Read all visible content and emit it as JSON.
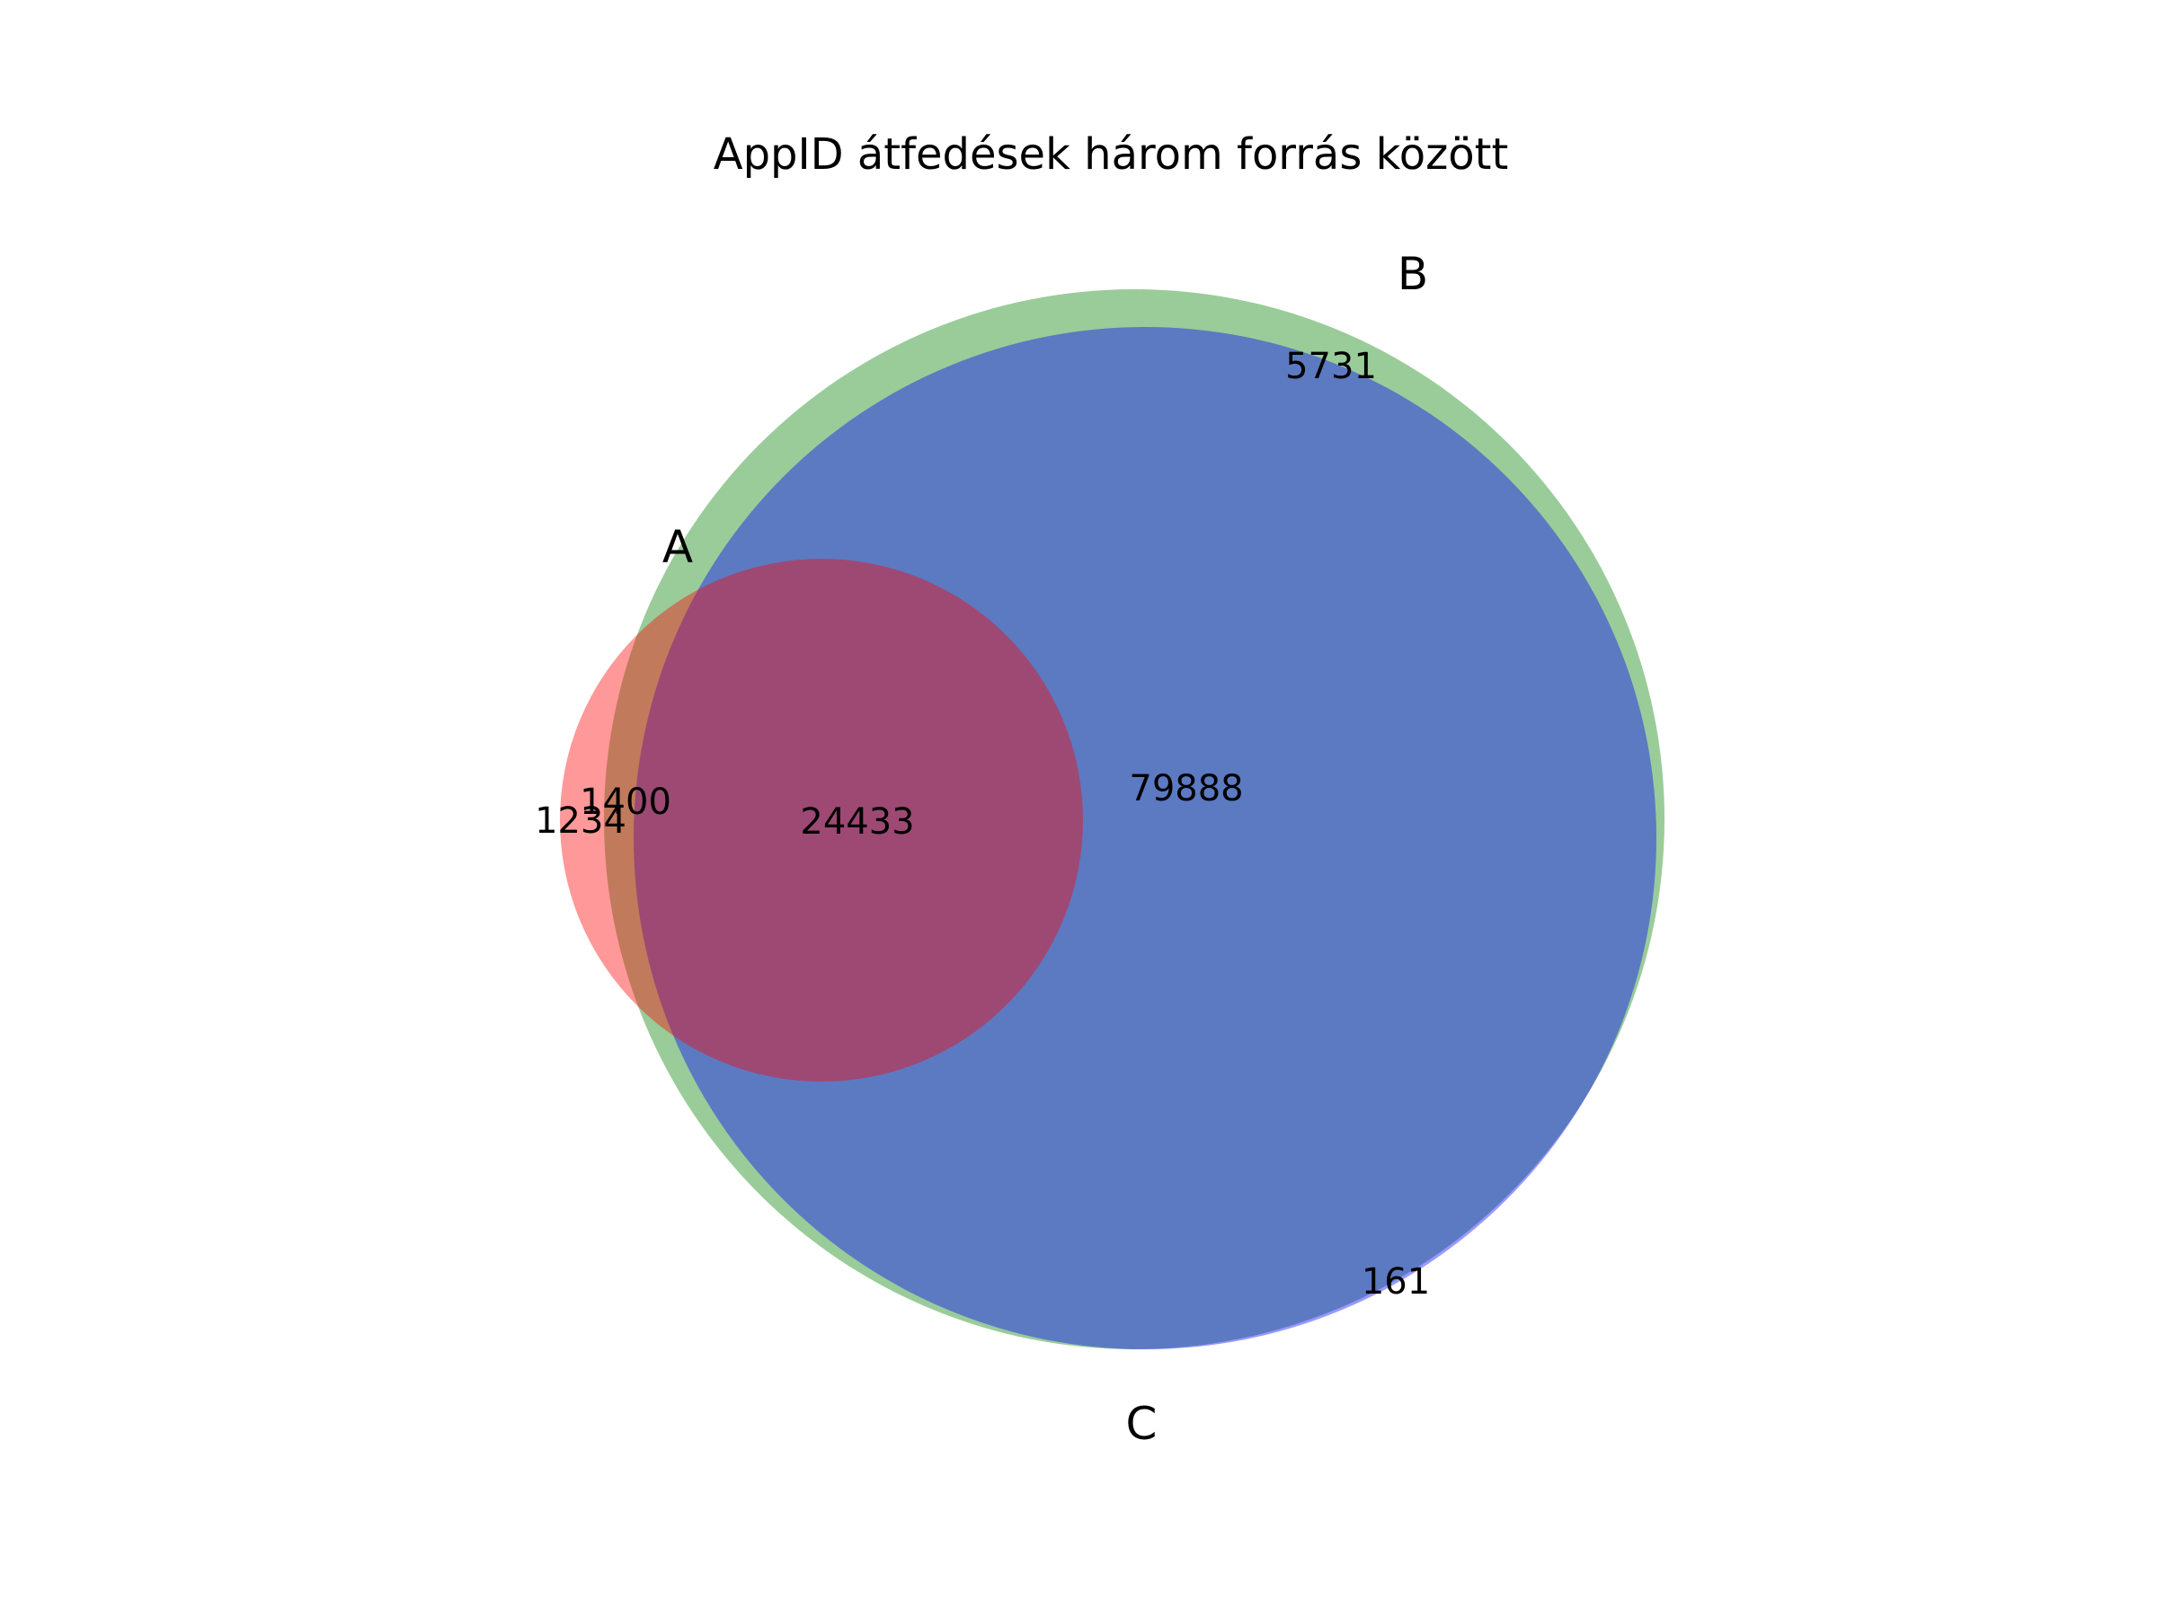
{
  "title": "AppID átfedések három forrás között",
  "sets": [
    {
      "id": "A",
      "label": "A",
      "color": "#ff0000"
    },
    {
      "id": "B",
      "label": "B",
      "color": "#008000"
    },
    {
      "id": "C",
      "label": "C",
      "color": "#0000ff"
    }
  ],
  "region_counts": {
    "A_only": "1234",
    "A_B": "1400",
    "A_B_C": "24433",
    "B_C": "79888",
    "B_only": "5731",
    "C_only": "161"
  },
  "fill_opacity": 0.4
}
